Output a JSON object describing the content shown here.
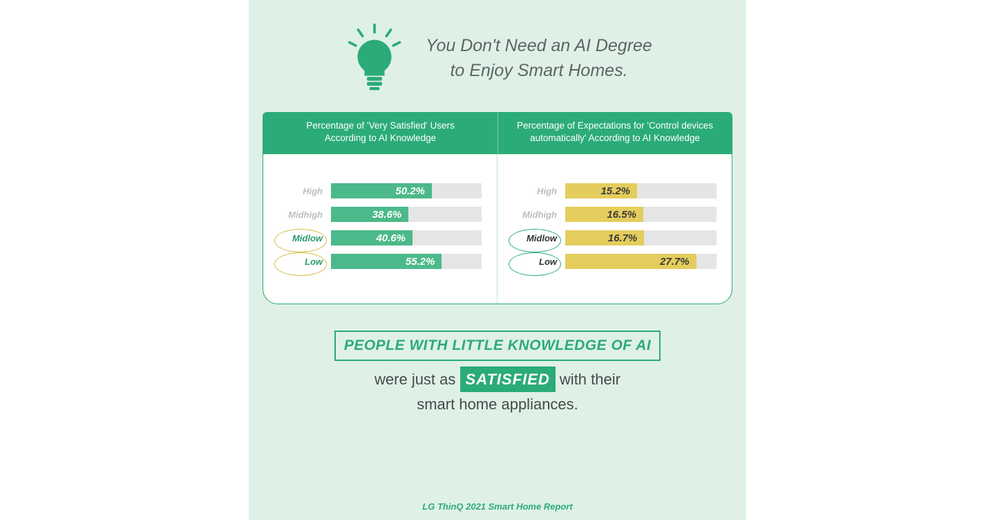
{
  "colors": {
    "card_bg": "#dff1e6",
    "primary_green": "#2bab78",
    "bar_green": "#4cb98a",
    "bar_yellow": "#e4cd5c",
    "track_grey": "#e5e5e5",
    "label_grey": "#b8bfbf",
    "text_grey": "#5b6566",
    "circle_yellow": "#d6bb3e",
    "circle_green": "#2bab78"
  },
  "title": "You Don't Need an AI Degree\nto Enjoy Smart Homes.",
  "left_chart": {
    "type": "bar",
    "header": "Percentage of 'Very Satisfied' Users\nAccording to AI Knowledge",
    "bar_color": "#4cb98a",
    "value_color": "#ffffff",
    "track_max_pct": 75,
    "circle_color": "#d6bb3e",
    "rows": [
      {
        "label": "High",
        "value": 50.2,
        "display": "50.2%",
        "highlight": false
      },
      {
        "label": "Midhigh",
        "value": 38.6,
        "display": "38.6%",
        "highlight": false
      },
      {
        "label": "Midlow",
        "value": 40.6,
        "display": "40.6%",
        "highlight": true
      },
      {
        "label": "Low",
        "value": 55.2,
        "display": "55.2%",
        "highlight": true
      }
    ]
  },
  "right_chart": {
    "type": "bar",
    "header": "Percentage of Expectations for 'Control devices\nautomatically' According to AI Knowledge",
    "bar_color": "#e4cd5c",
    "value_color": "#3a3a3a",
    "track_max_pct": 32,
    "circle_color": "#2bab78",
    "rows": [
      {
        "label": "High",
        "value": 15.2,
        "display": "15.2%",
        "highlight": false
      },
      {
        "label": "Midhigh",
        "value": 16.5,
        "display": "16.5%",
        "highlight": false
      },
      {
        "label": "Midlow",
        "value": 16.7,
        "display": "16.7%",
        "highlight": true
      },
      {
        "label": "Low",
        "value": 27.7,
        "display": "27.7%",
        "highlight": true
      }
    ]
  },
  "summary": {
    "headline": "PEOPLE WITH LITTLE KNOWLEDGE OF AI",
    "line_before_badge": "were just as",
    "badge": "SATISFIED",
    "line_after_badge": "with their",
    "line2": "smart home appliances."
  },
  "footer": "LG ThinQ 2021 Smart Home Report"
}
